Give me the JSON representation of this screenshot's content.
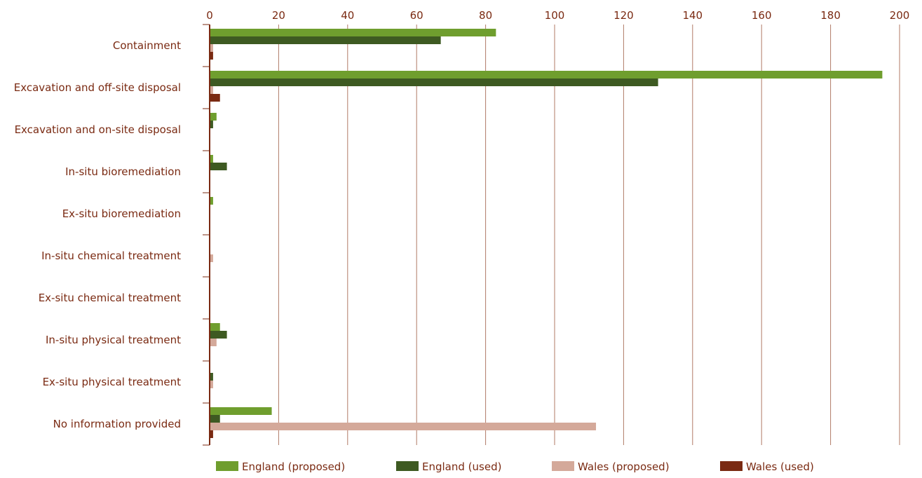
{
  "chart_data": {
    "type": "bar",
    "orientation": "horizontal",
    "categories": [
      "Containment",
      "Excavation and off-site disposal",
      "Excavation and on-site disposal",
      "In-situ bioremediation",
      "Ex-situ bioremediation",
      "In-situ chemical treatment",
      "Ex-situ chemical treatment",
      "In-situ physical treatment",
      "Ex-situ physical treatment",
      "No information provided"
    ],
    "series": [
      {
        "name": "England (proposed)",
        "color": "#6f9e2e",
        "values": [
          83,
          195,
          2,
          1,
          1,
          0,
          0,
          3,
          0,
          18
        ]
      },
      {
        "name": "England (used)",
        "color": "#3e5a22",
        "values": [
          67,
          130,
          1,
          5,
          0,
          0,
          0,
          5,
          1,
          3
        ]
      },
      {
        "name": "Wales (proposed)",
        "color": "#d4a99a",
        "values": [
          1,
          1,
          0,
          0,
          0,
          1,
          0,
          2,
          1,
          112
        ]
      },
      {
        "name": "Wales (used)",
        "color": "#7a2a12",
        "values": [
          1,
          3,
          0,
          0,
          0,
          0,
          0,
          0,
          0,
          1
        ]
      }
    ],
    "xlim": [
      0,
      200
    ],
    "xticks": [
      0,
      20,
      40,
      60,
      80,
      100,
      120,
      140,
      160,
      180,
      200
    ],
    "grid": true,
    "legend_position": "bottom",
    "axis_color": "#7a2a12",
    "grid_color": "#b07a66",
    "text_color": "#7a2a12"
  }
}
